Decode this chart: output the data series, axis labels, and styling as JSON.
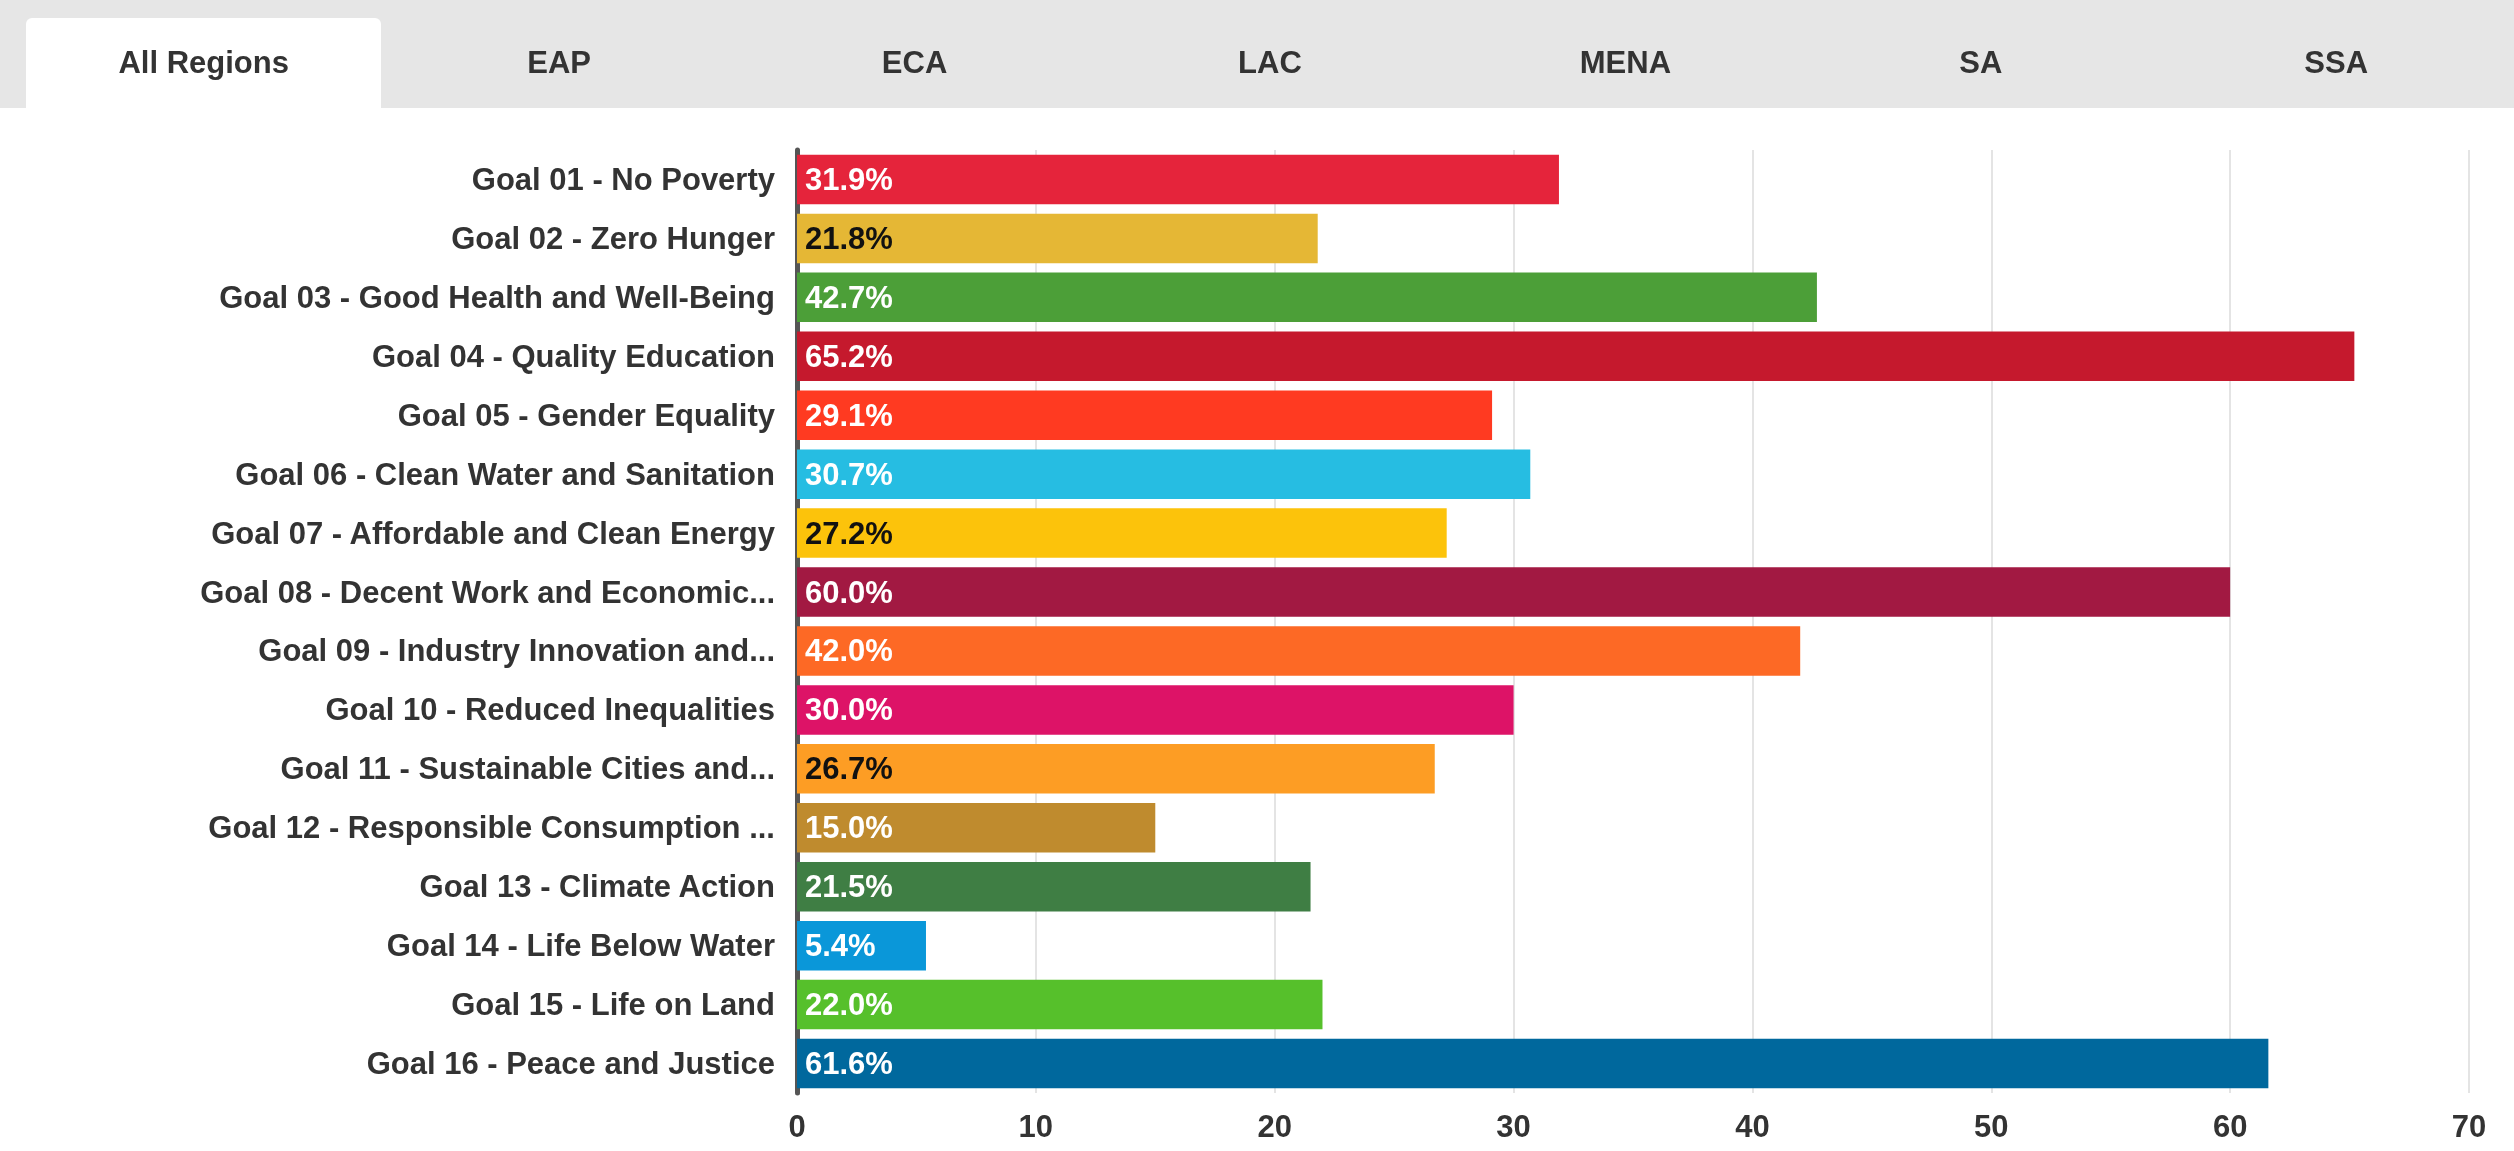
{
  "chart_data": {
    "type": "bar",
    "orientation": "horizontal",
    "annotations": [
      "All Regions",
      "EAP",
      "ECA",
      "LAC",
      "MENA",
      "SA",
      "SSA"
    ],
    "categories": [
      "Goal 01 - No Poverty",
      "Goal 02 - Zero Hunger",
      "Goal 03 - Good Health and Well-Being",
      "Goal 04 - Quality Education",
      "Goal 05 - Gender Equality",
      "Goal 06 - Clean Water and Sanitation",
      "Goal 07 - Affordable and Clean Energy",
      "Goal 08 - Decent Work and Economic...",
      "Goal 09 - Industry Innovation and...",
      "Goal 10 - Reduced Inequalities",
      "Goal 11 - Sustainable Cities and...",
      "Goal 12 - Responsible Consumption ...",
      "Goal 13 - Climate Action",
      "Goal 14 - Life Below Water",
      "Goal 15 - Life on Land",
      "Goal 16 - Peace and Justice"
    ],
    "values": [
      31.9,
      21.8,
      42.7,
      65.2,
      29.1,
      30.7,
      27.2,
      60.0,
      42.0,
      30.0,
      26.7,
      15.0,
      21.5,
      5.4,
      22.0,
      61.6
    ],
    "value_labels": [
      "31.9%",
      "21.8%",
      "42.7%",
      "65.2%",
      "29.1%",
      "30.7%",
      "27.2%",
      "60.0%",
      "42.0%",
      "30.0%",
      "26.7%",
      "15.0%",
      "21.5%",
      "5.4%",
      "22.0%",
      "61.6%"
    ],
    "colors": [
      "#e5243b",
      "#e5b735",
      "#4c9f38",
      "#c5192d",
      "#ff3a21",
      "#26bde2",
      "#fcc30b",
      "#a21942",
      "#fd6925",
      "#dd1367",
      "#fd9d24",
      "#bf8b2e",
      "#3f7e44",
      "#0a97d9",
      "#56c02b",
      "#00689d"
    ],
    "xlim": [
      0,
      70
    ],
    "xticks": [
      0,
      10,
      20,
      30,
      40,
      50,
      60,
      70
    ],
    "grid": "x"
  }
}
